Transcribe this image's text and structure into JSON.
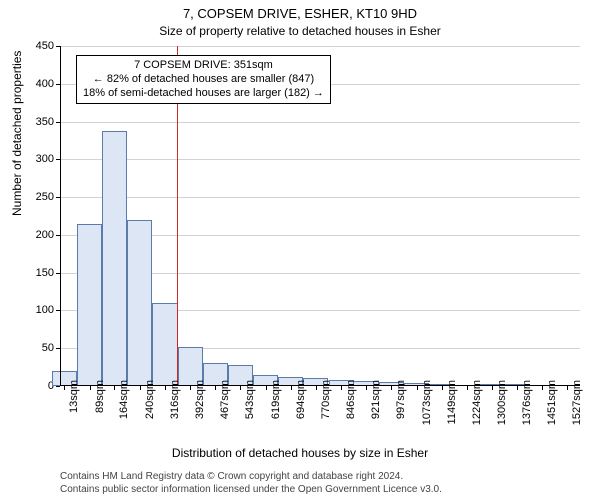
{
  "header": {
    "title": "7, COPSEM DRIVE, ESHER, KT10 9HD",
    "subtitle": "Size of property relative to detached houses in Esher"
  },
  "chart": {
    "type": "histogram",
    "ylabel": "Number of detached properties",
    "xlabel": "Distribution of detached houses by size in Esher",
    "ylim": [
      0,
      450
    ],
    "ytick_step": 50,
    "xtick_values": [
      13,
      89,
      164,
      240,
      316,
      392,
      467,
      543,
      619,
      694,
      770,
      846,
      921,
      997,
      1073,
      1149,
      1224,
      1300,
      1376,
      1451,
      1527
    ],
    "xtick_unit": "sqm",
    "x_range": [
      0,
      1565
    ],
    "bin_width_val": 75.7,
    "values": [
      20,
      215,
      338,
      220,
      110,
      52,
      30,
      28,
      15,
      12,
      10,
      8,
      6,
      5,
      4,
      3,
      0,
      2,
      1,
      0,
      0
    ],
    "bar_fill": "#dce6f4",
    "bar_stroke": "#5b7caa",
    "grid_color": "#808080",
    "reference_line": {
      "value": 351,
      "color": "#d62728"
    },
    "background_color": "#ffffff",
    "title_fontsize": 13,
    "label_fontsize": 12,
    "tick_fontsize": 11
  },
  "annotation": {
    "line1": "7 COPSEM DRIVE: 351sqm",
    "line2": "← 82% of detached houses are smaller (847)",
    "line3": "18% of semi-detached houses are larger (182) →"
  },
  "footer": {
    "line1": "Contains HM Land Registry data © Crown copyright and database right 2024.",
    "line2": "Contains public sector information licensed under the Open Government Licence v3.0."
  }
}
